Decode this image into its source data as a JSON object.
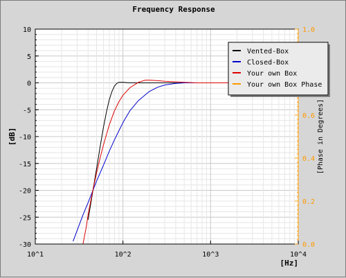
{
  "chart_data": {
    "type": "line",
    "title": "Frequency Response",
    "xlabel": "[Hz]",
    "ylabel": "[dB]",
    "y2label": "[Phase in Degrees]",
    "xscale": "log",
    "xlim": [
      10,
      10000
    ],
    "ylim": [
      -30,
      10
    ],
    "y2lim": [
      0,
      1
    ],
    "grid": true,
    "legend_position": "top-right",
    "x_ticks": [
      "10^1",
      "10^2",
      "10^3",
      "10^4"
    ],
    "y_ticks": [
      "10",
      "5",
      "0",
      "-5",
      "-10",
      "-15",
      "-20",
      "-25",
      "-30"
    ],
    "y2_ticks": [
      "1.0",
      "0.8",
      "0.6",
      "0.4",
      "0.2",
      "0.0"
    ],
    "series": [
      {
        "name": "Vented-Box",
        "color": "#000000",
        "x": [
          40,
          45,
          50,
          55,
          60,
          65,
          70,
          75,
          80,
          85,
          90,
          100,
          120,
          150,
          200,
          300,
          500,
          1000,
          2000,
          5000,
          9000
        ],
        "y": [
          -25.5,
          -20.5,
          -16.0,
          -11.8,
          -8.2,
          -5.3,
          -3.1,
          -1.6,
          -0.6,
          -0.1,
          0.1,
          0.1,
          0.0,
          0.0,
          0.0,
          0.0,
          0.0,
          0.0,
          0.0,
          0.0,
          0.0
        ]
      },
      {
        "name": "Closed-Box",
        "color": "#0000cc",
        "x": [
          27,
          30,
          35,
          40,
          45,
          50,
          60,
          70,
          80,
          90,
          100,
          120,
          150,
          200,
          250,
          300,
          400,
          500,
          700,
          1000,
          2000,
          5000,
          9000
        ],
        "y": [
          -29.5,
          -27.5,
          -24.6,
          -22.3,
          -20.2,
          -18.3,
          -15.3,
          -12.7,
          -10.6,
          -8.9,
          -7.4,
          -5.2,
          -3.3,
          -1.6,
          -0.8,
          -0.4,
          -0.1,
          0.0,
          0.0,
          0.0,
          0.0,
          0.0,
          0.0
        ]
      },
      {
        "name": "Your own Box",
        "color": "#dd0000",
        "x": [
          35,
          38,
          40,
          45,
          50,
          55,
          60,
          70,
          80,
          90,
          100,
          120,
          150,
          180,
          200,
          250,
          300,
          400,
          500,
          700,
          1000,
          2000,
          5000,
          9000
        ],
        "y": [
          -30.0,
          -27.0,
          -24.5,
          -20.3,
          -16.8,
          -13.9,
          -11.5,
          -7.8,
          -5.2,
          -3.5,
          -2.3,
          -0.9,
          0.1,
          0.5,
          0.5,
          0.4,
          0.3,
          0.2,
          0.1,
          0.0,
          0.0,
          0.0,
          0.0,
          0.0
        ]
      },
      {
        "name": "Your own Box Phase",
        "color": "#ff9900",
        "x": [],
        "y": []
      }
    ]
  }
}
